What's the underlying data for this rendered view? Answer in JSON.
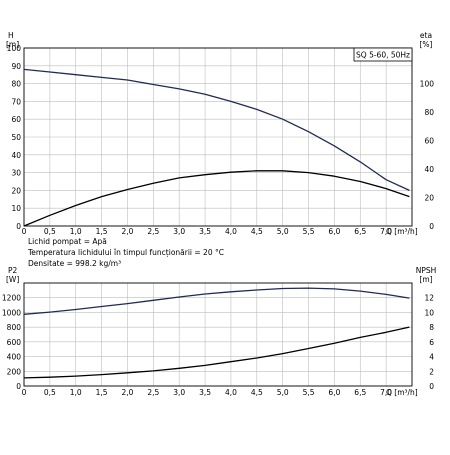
{
  "chart_data": [
    {
      "type": "line",
      "title": "SQ 5-60, 50Hz",
      "xlabel": "Q [m³/h]",
      "x_ticks": [
        "0",
        "0,5",
        "1,0",
        "1,5",
        "2,0",
        "2,5",
        "3,0",
        "3,5",
        "4,0",
        "4,5",
        "5,0",
        "5,5",
        "6,0",
        "6,5",
        "7,0"
      ],
      "xlim": [
        0,
        7.5
      ],
      "ylabel_left": "H",
      "ylabel_left_unit": "[m]",
      "ylim_left": [
        0,
        100
      ],
      "yticks_left": [
        "0",
        "10",
        "20",
        "30",
        "40",
        "50",
        "60",
        "70",
        "80",
        "90",
        "100"
      ],
      "ylabel_right": "eta",
      "ylabel_right_unit": "[%]",
      "ylim_right": [
        0,
        125
      ],
      "yticks_right": [
        "0",
        "20",
        "40",
        "60",
        "80",
        "100"
      ],
      "grid": true,
      "series": [
        {
          "axis": "left",
          "color": "#1f2b55",
          "points": [
            [
              0,
              88
            ],
            [
              0.5,
              86.5
            ],
            [
              1.0,
              85
            ],
            [
              1.5,
              83.5
            ],
            [
              2.0,
              82
            ],
            [
              2.5,
              79.5
            ],
            [
              3.0,
              77
            ],
            [
              3.5,
              74
            ],
            [
              4.0,
              70
            ],
            [
              4.5,
              65.5
            ],
            [
              5.0,
              60
            ],
            [
              5.5,
              53
            ],
            [
              6.0,
              45
            ],
            [
              6.5,
              36
            ],
            [
              7.0,
              26
            ],
            [
              7.45,
              20
            ]
          ]
        },
        {
          "axis": "left",
          "color": "#000000",
          "points": [
            [
              0,
              0
            ],
            [
              0.5,
              6
            ],
            [
              1.0,
              11.5
            ],
            [
              1.5,
              16.5
            ],
            [
              2.0,
              20.5
            ],
            [
              2.5,
              24
            ],
            [
              3.0,
              27
            ],
            [
              3.5,
              28.8
            ],
            [
              4.0,
              30.2
            ],
            [
              4.5,
              31
            ],
            [
              5.0,
              31
            ],
            [
              5.5,
              30
            ],
            [
              6.0,
              28
            ],
            [
              6.5,
              25
            ],
            [
              7.0,
              21
            ],
            [
              7.45,
              16.5
            ]
          ]
        }
      ],
      "fluid_info": [
        "Lichid pompat = Apă",
        "Temperatura lichidului în timpul funcționării = 20 °C",
        "Densitate = 998.2 kg/m³"
      ]
    },
    {
      "type": "line",
      "xlabel": "Q [m³/h]",
      "x_ticks": [
        "0",
        "0,5",
        "1,0",
        "1,5",
        "2,0",
        "2,5",
        "3,0",
        "3,5",
        "4,0",
        "4,5",
        "5,0",
        "5,5",
        "6,0",
        "6,5",
        "7,0"
      ],
      "xlim": [
        0,
        7.5
      ],
      "ylabel_left": "P2",
      "ylabel_left_unit": "[W]",
      "ylim_left": [
        0,
        1400
      ],
      "yticks_left": [
        "0",
        "200",
        "400",
        "600",
        "800",
        "1000",
        "1200"
      ],
      "ylabel_right": "NPSH",
      "ylabel_right_unit": "[m]",
      "ylim_right": [
        0,
        14
      ],
      "yticks_right": [
        "0",
        "2",
        "4",
        "6",
        "8",
        "10",
        "12"
      ],
      "grid": true,
      "series": [
        {
          "axis": "left",
          "color": "#1f2b55",
          "points": [
            [
              0,
              975
            ],
            [
              0.5,
              1005
            ],
            [
              1.0,
              1040
            ],
            [
              1.5,
              1080
            ],
            [
              2.0,
              1120
            ],
            [
              2.5,
              1165
            ],
            [
              3.0,
              1210
            ],
            [
              3.5,
              1250
            ],
            [
              4.0,
              1280
            ],
            [
              4.5,
              1305
            ],
            [
              5.0,
              1325
            ],
            [
              5.5,
              1330
            ],
            [
              6.0,
              1320
            ],
            [
              6.5,
              1290
            ],
            [
              7.0,
              1245
            ],
            [
              7.45,
              1195
            ]
          ]
        },
        {
          "axis": "right",
          "color": "#000000",
          "points": [
            [
              0,
              1.1
            ],
            [
              0.5,
              1.2
            ],
            [
              1.0,
              1.35
            ],
            [
              1.5,
              1.55
            ],
            [
              2.0,
              1.8
            ],
            [
              2.5,
              2.05
            ],
            [
              3.0,
              2.4
            ],
            [
              3.5,
              2.8
            ],
            [
              4.0,
              3.3
            ],
            [
              4.5,
              3.8
            ],
            [
              5.0,
              4.4
            ],
            [
              5.5,
              5.1
            ],
            [
              6.0,
              5.8
            ],
            [
              6.5,
              6.6
            ],
            [
              7.0,
              7.3
            ],
            [
              7.45,
              8.0
            ]
          ]
        }
      ]
    }
  ]
}
